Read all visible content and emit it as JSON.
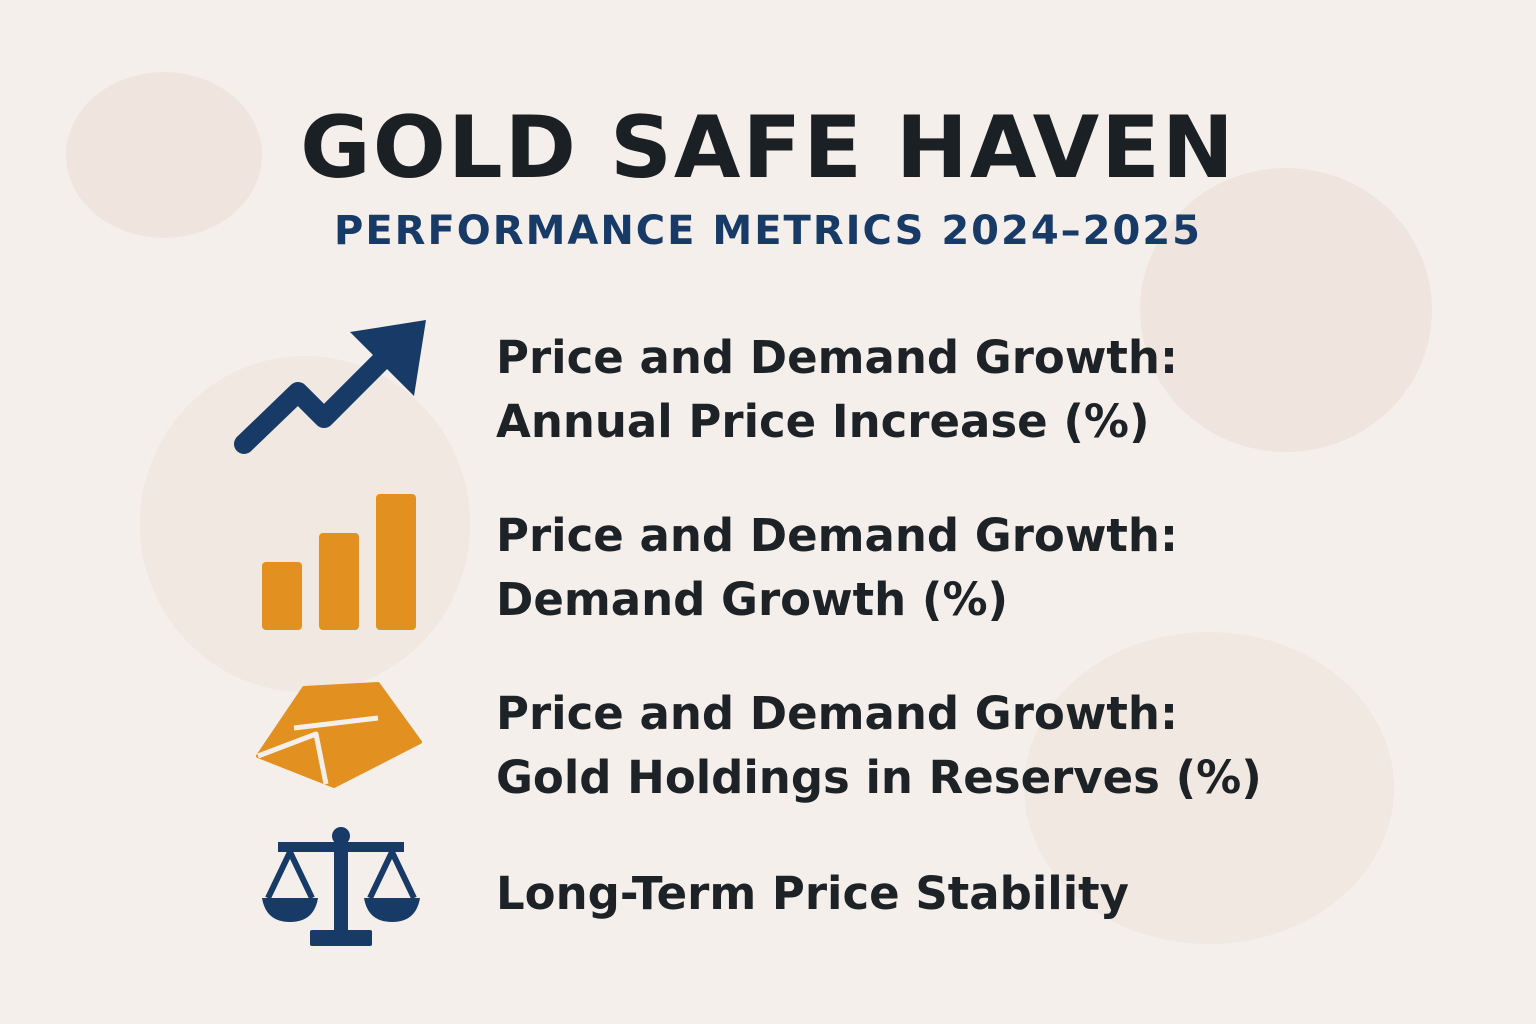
{
  "header": {
    "title": "GOLD SAFE HAVEN",
    "subtitle": "PERFORMANCE METRICS 2024–2025"
  },
  "colors": {
    "navy": "#173a66",
    "gold": "#e2901f",
    "text": "#1d2227",
    "background": "#f4efea"
  },
  "metrics": [
    {
      "icon": "trend-arrow-icon",
      "heading": "Price and Demand Growth:",
      "detail": "Annual Price Increase (%)"
    },
    {
      "icon": "bar-chart-icon",
      "heading": "Price and Demand Growth:",
      "detail": "Demand Growth (%)"
    },
    {
      "icon": "gold-bar-icon",
      "heading": "Price and Demand Growth:",
      "detail": "Gold Holdings in Reserves (%)"
    },
    {
      "icon": "balance-scale-icon",
      "heading": "Long-Term Price Stability"
    }
  ]
}
